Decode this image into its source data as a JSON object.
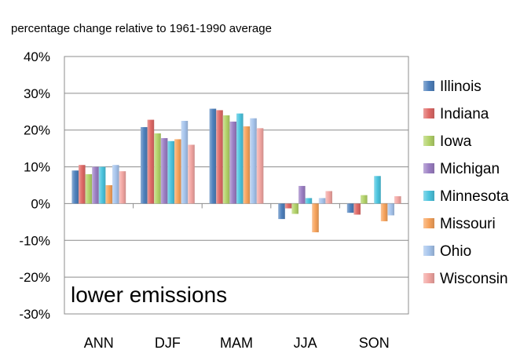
{
  "chart_data": {
    "type": "bar",
    "title": "percentage change relative to 1961-1990 average",
    "annotation": "lower emissions",
    "categories": [
      "ANN",
      "DJF",
      "MAM",
      "JJA",
      "SON"
    ],
    "ylim": [
      -30,
      40
    ],
    "yticks": [
      {
        "value": 40,
        "label": "40%"
      },
      {
        "value": 30,
        "label": "30%"
      },
      {
        "value": 20,
        "label": "20%"
      },
      {
        "value": 10,
        "label": "10%"
      },
      {
        "value": 0,
        "label": "0%"
      },
      {
        "value": -10,
        "label": "-10%"
      },
      {
        "value": -20,
        "label": "-20%"
      },
      {
        "value": -30,
        "label": "-30%"
      }
    ],
    "grid": true,
    "legend_position": "right",
    "series": [
      {
        "name": "Illinois",
        "color": "#4f81bd",
        "values": [
          9.0,
          20.8,
          25.8,
          -4.2,
          -2.5
        ]
      },
      {
        "name": "Indiana",
        "color": "#e06a67",
        "values": [
          10.5,
          22.8,
          25.4,
          -1.3,
          -3.0
        ]
      },
      {
        "name": "Iowa",
        "color": "#b3d36a",
        "values": [
          8.0,
          19.1,
          24.0,
          -2.8,
          2.3
        ]
      },
      {
        "name": "Michigan",
        "color": "#9c7fc4",
        "values": [
          10.0,
          17.8,
          22.3,
          4.8,
          0.0
        ]
      },
      {
        "name": "Minnesota",
        "color": "#4bc4de",
        "values": [
          10.0,
          17.0,
          24.5,
          1.5,
          7.5
        ]
      },
      {
        "name": "Missouri",
        "color": "#f7a35c",
        "values": [
          5.0,
          17.5,
          21.0,
          -7.8,
          -4.8
        ]
      },
      {
        "name": "Ohio",
        "color": "#a6c4ec",
        "values": [
          10.5,
          22.5,
          23.2,
          1.5,
          -3.2
        ]
      },
      {
        "name": "Wisconsin",
        "color": "#f2a6a2",
        "values": [
          8.8,
          16.0,
          20.5,
          3.4,
          2.0
        ]
      }
    ]
  }
}
